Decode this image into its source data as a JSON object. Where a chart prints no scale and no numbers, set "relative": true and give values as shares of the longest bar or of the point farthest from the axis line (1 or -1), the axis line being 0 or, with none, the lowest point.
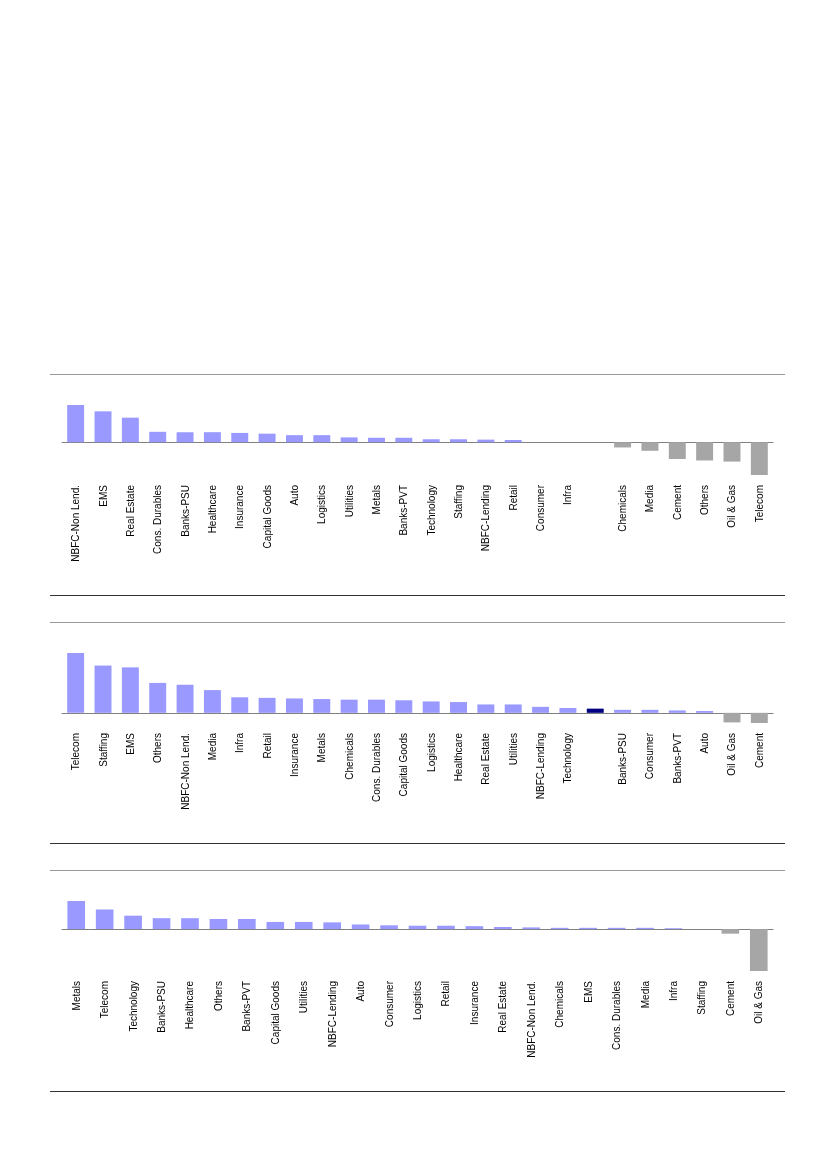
{
  "chart_data": [
    {
      "type": "bar",
      "relative": true,
      "categories": [
        "NBFC-Non Lend.",
        "EMS",
        "Real Estate",
        "Cons. Durables",
        "Banks-PSU",
        "Healthcare",
        "Insurance",
        "Capital Goods",
        "Auto",
        "Logistics",
        "Utilities",
        "Metals",
        "Banks-PVT",
        "Technology",
        "Staffing",
        "NBFC-Lending",
        "Retail",
        "Consumer",
        "Infra",
        null,
        "Chemicals",
        "Media",
        "Cement",
        "Others",
        "Oil & Gas",
        "Telecom"
      ],
      "values": [
        1,
        0.83,
        0.66,
        0.28,
        0.27,
        0.27,
        0.25,
        0.23,
        0.19,
        0.19,
        0.13,
        0.12,
        0.12,
        0.08,
        0.08,
        0.07,
        0.06,
        0,
        0,
        0,
        -0.14,
        -0.23,
        -0.45,
        -0.49,
        -0.52,
        -0.88
      ],
      "colors": [
        "#9999ff",
        "#9999ff",
        "#9999ff",
        "#9999ff",
        "#9999ff",
        "#9999ff",
        "#9999ff",
        "#9999ff",
        "#9999ff",
        "#9999ff",
        "#9999ff",
        "#9999ff",
        "#9999ff",
        "#9999ff",
        "#9999ff",
        "#9999ff",
        "#9999ff",
        "#9999ff",
        "#9999ff",
        "#000080",
        "#a6a6a6",
        "#a6a6a6",
        "#a6a6a6",
        "#a6a6a6",
        "#a6a6a6",
        "#a6a6a6"
      ]
    },
    {
      "type": "bar",
      "relative": true,
      "categories": [
        "Telecom",
        "Staffing",
        "EMS",
        "Others",
        "NBFC-Non Lend.",
        "Media",
        "Infra",
        "Retail",
        "Insurance",
        "Metals",
        "Chemicals",
        "Cons. Durables",
        "Capital Goods",
        "Logistics",
        "Healthcare",
        "Real Estate",
        "Utilities",
        "NBFC-Lending",
        "Technology",
        null,
        "Banks-PSU",
        "Consumer",
        "Banks-PVT",
        "Auto",
        "Oil & Gas",
        "Cement"
      ],
      "values": [
        1,
        0.79,
        0.76,
        0.5,
        0.47,
        0.38,
        0.26,
        0.25,
        0.24,
        0.23,
        0.22,
        0.22,
        0.21,
        0.19,
        0.18,
        0.14,
        0.14,
        0.1,
        0.08,
        0.07,
        0.05,
        0.05,
        0.04,
        0.03,
        -0.16,
        -0.17
      ],
      "colors": [
        "#9999ff",
        "#9999ff",
        "#9999ff",
        "#9999ff",
        "#9999ff",
        "#9999ff",
        "#9999ff",
        "#9999ff",
        "#9999ff",
        "#9999ff",
        "#9999ff",
        "#9999ff",
        "#9999ff",
        "#9999ff",
        "#9999ff",
        "#9999ff",
        "#9999ff",
        "#9999ff",
        "#9999ff",
        "#000080",
        "#9999ff",
        "#9999ff",
        "#9999ff",
        "#9999ff",
        "#a6a6a6",
        "#a6a6a6"
      ]
    },
    {
      "type": "bar",
      "relative": true,
      "categories": [
        "Metals",
        "Telecom",
        "Technology",
        "Banks-PSU",
        "Healthcare",
        "Others",
        "Banks-PVT",
        "Capital Goods",
        "Utilities",
        "NBFC-Lending",
        "Auto",
        "Consumer",
        "Logistics",
        "Retail",
        "Insurance",
        "Real Estate",
        "NBFC-Non Lend.",
        "Chemicals",
        "EMS",
        "Cons. Durables",
        "Media",
        "Infra",
        "Staffing",
        "Cement",
        "Oil & Gas"
      ],
      "values": [
        0.67,
        0.47,
        0.32,
        0.26,
        0.26,
        0.24,
        0.24,
        0.17,
        0.17,
        0.16,
        0.11,
        0.09,
        0.08,
        0.08,
        0.07,
        0.05,
        0.04,
        0.03,
        0.03,
        0.03,
        0.03,
        0.02,
        null,
        -0.11,
        -1
      ],
      "colors": [
        "#9999ff",
        "#9999ff",
        "#9999ff",
        "#9999ff",
        "#9999ff",
        "#9999ff",
        "#9999ff",
        "#9999ff",
        "#9999ff",
        "#9999ff",
        "#9999ff",
        "#9999ff",
        "#9999ff",
        "#9999ff",
        "#9999ff",
        "#9999ff",
        "#9999ff",
        "#9999ff",
        "#9999ff",
        "#9999ff",
        "#9999ff",
        "#9999ff",
        "#9999ff",
        "#a6a6a6",
        "#a6a6a6"
      ]
    }
  ]
}
